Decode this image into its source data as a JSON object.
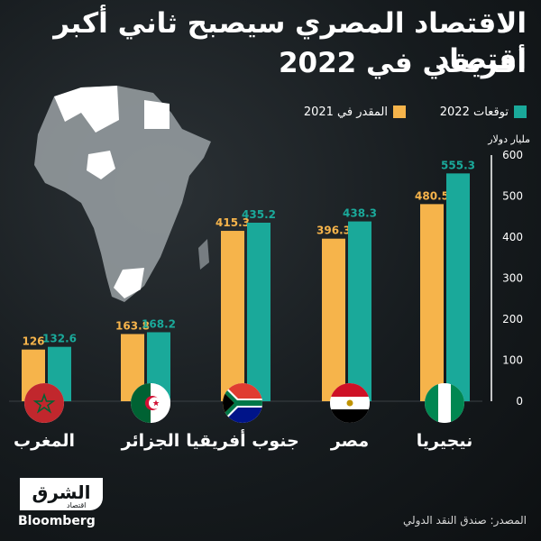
{
  "title_line1": "الاقتصاد المصري سيصبح ثاني أكبر اقتصاد",
  "title_line2": "أفريقي في 2022",
  "legend": {
    "forecast_2022": "توقعات 2022",
    "estimate_2021": "المقدر في 2021"
  },
  "unit_label": "مليار دولار",
  "source": "المصدر: صندق النقد الدولي",
  "logo": {
    "main": "الشرق",
    "tag": "اقتصاد",
    "brand": "Bloomberg"
  },
  "colors": {
    "series_2021": "#F6B44B",
    "series_2022": "#1AA99A",
    "background": "#101416"
  },
  "chart_data": {
    "type": "bar",
    "categories": [
      "المغرب",
      "الجزائر",
      "جنوب أفريقيا",
      "مصر",
      "نيجيريا"
    ],
    "series": [
      {
        "name": "المقدر في 2021",
        "values": [
          126,
          163.8,
          415.3,
          396.3,
          480.5
        ],
        "color": "#F6B44B",
        "labels": [
          "126",
          "163.8",
          "415.3",
          "396.3",
          "480.5"
        ]
      },
      {
        "name": "توقعات 2022",
        "values": [
          132.6,
          168.2,
          435.2,
          438.3,
          555.3
        ],
        "color": "#1AA99A",
        "labels": [
          "132.6",
          "168.2",
          "435.2",
          "438.3",
          "555.3"
        ]
      }
    ],
    "yticks": [
      "0",
      "100",
      "200",
      "300",
      "400",
      "500",
      "600"
    ],
    "ylim": [
      0,
      600
    ],
    "ylabel": "مليار دولار",
    "flags": [
      "morocco-flag",
      "algeria-flag",
      "south-africa-flag",
      "egypt-flag",
      "nigeria-flag"
    ]
  }
}
